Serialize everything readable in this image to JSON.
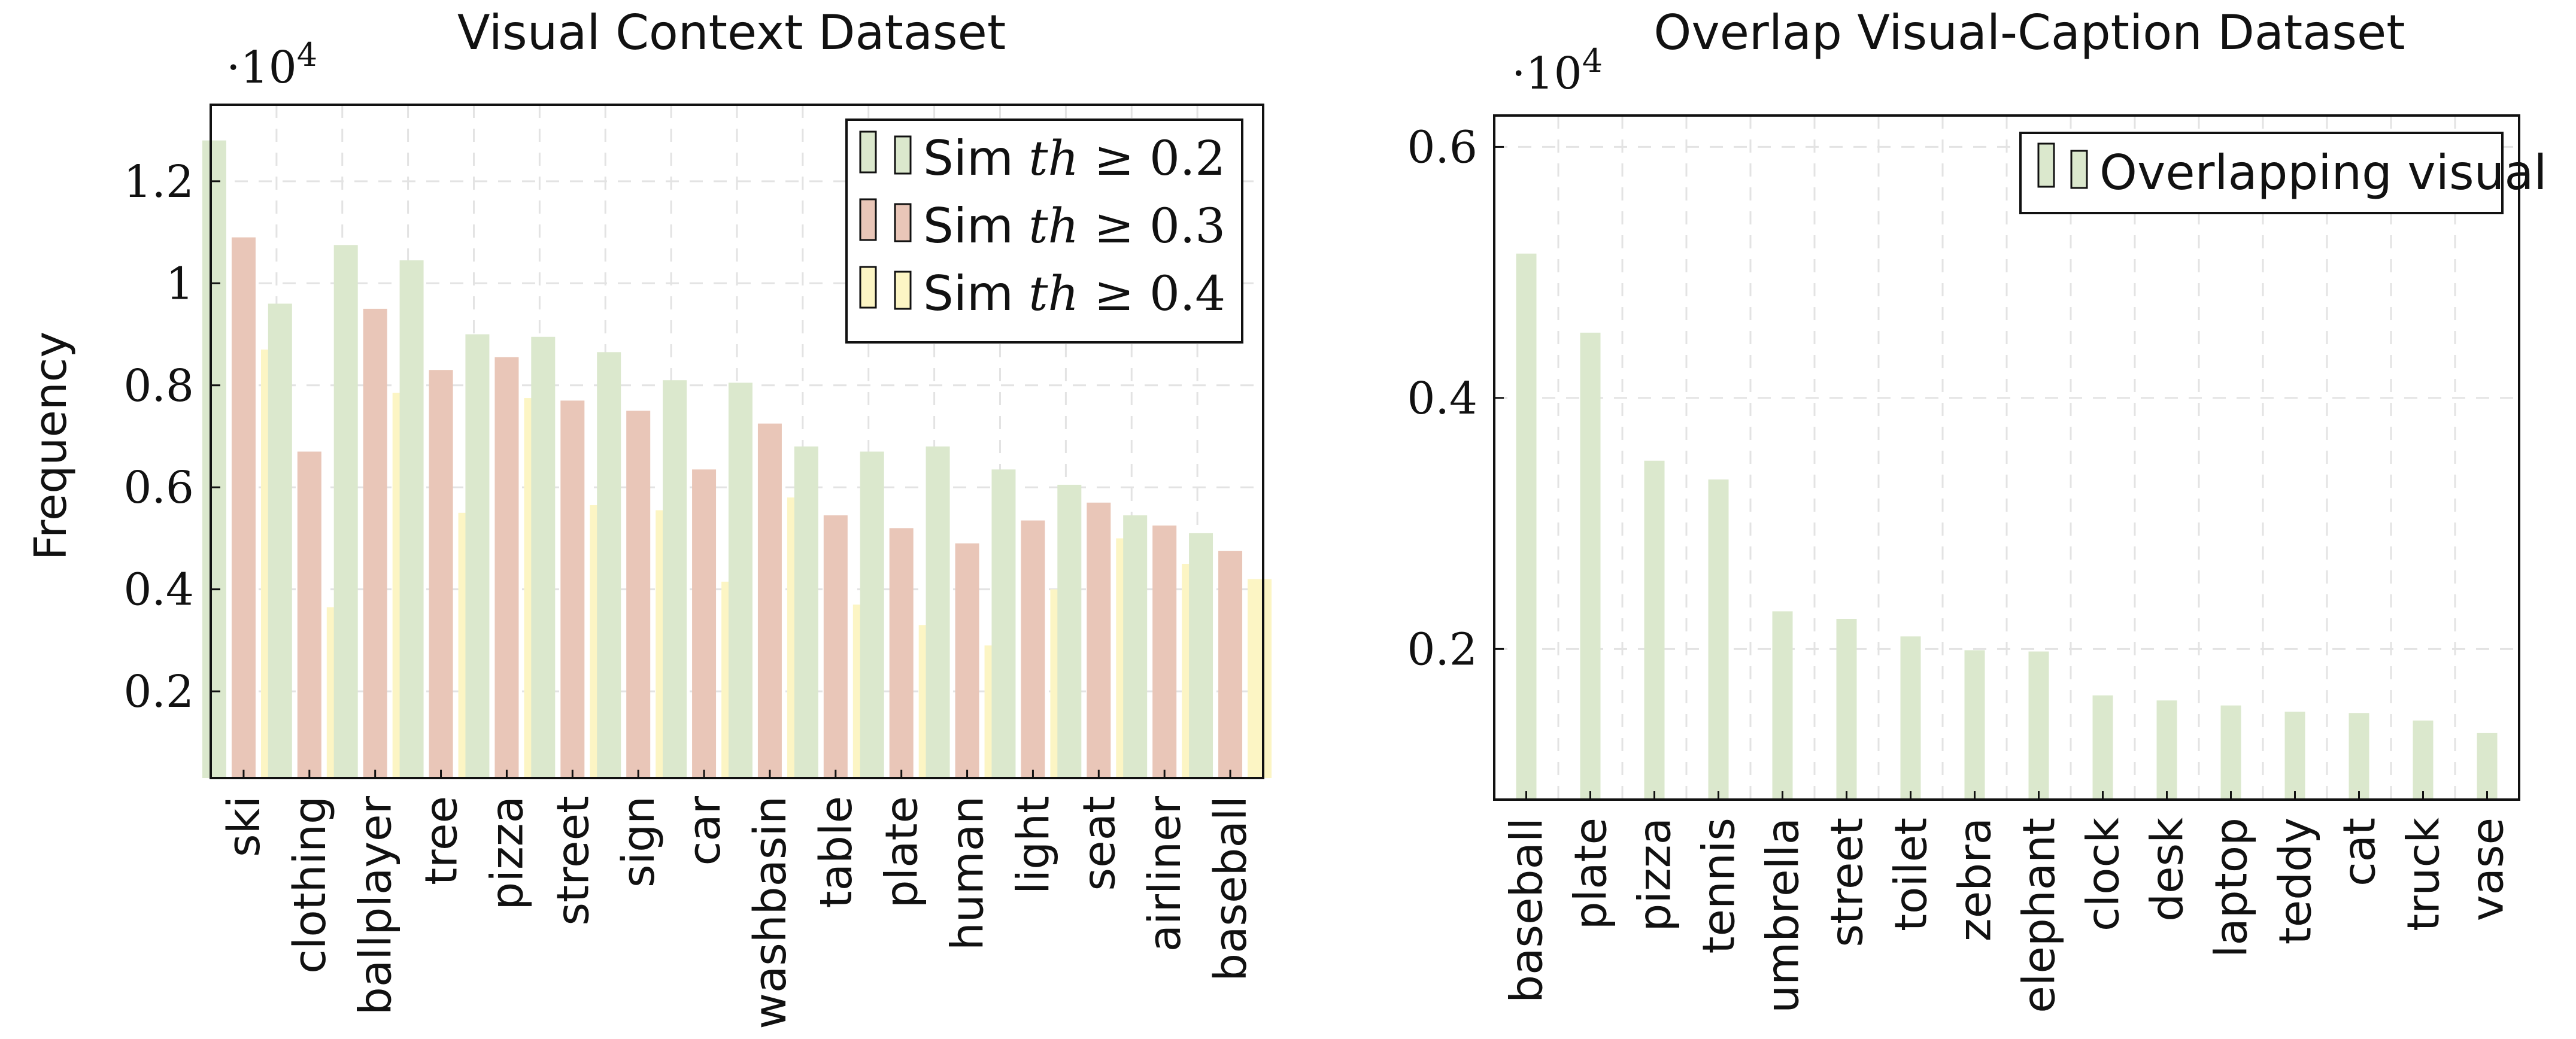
{
  "charts": [
    {
      "title": "Visual Context Dataset",
      "ylabel": "Frequency",
      "multiplier": "·10",
      "multiplier_exp": "4",
      "y_ticks": [
        "0.2",
        "0.4",
        "0.6",
        "0.8",
        "1",
        "1.2"
      ],
      "legend": [
        {
          "label": "Sim th ≥ 0.2",
          "prefix": "Sim ",
          "var": "th",
          "rest": " ≥ 0.2"
        },
        {
          "label": "Sim th ≥ 0.3",
          "prefix": "Sim ",
          "var": "th",
          "rest": " ≥ 0.3"
        },
        {
          "label": "Sim th ≥ 0.4",
          "prefix": "Sim ",
          "var": "th",
          "rest": " ≥ 0.4"
        }
      ]
    },
    {
      "title": "Overlap Visual-Caption Dataset",
      "multiplier": "·10",
      "multiplier_exp": "4",
      "y_ticks": [
        "0.2",
        "0.4",
        "0.6"
      ],
      "legend": [
        {
          "label": "Overlapping visual"
        }
      ]
    }
  ],
  "chart_data": [
    {
      "type": "bar",
      "title": "Visual Context Dataset",
      "ylabel": "Frequency",
      "y_multiplier": 10000,
      "ylim": [
        0.03,
        1.35
      ],
      "grid": true,
      "legend_position": "top-right",
      "colors": {
        "th02": "#dbe8cd",
        "th03": "#e9c6b8",
        "th04": "#fcf5c4"
      },
      "categories": [
        "ski",
        "clothing",
        "ballplayer",
        "tree",
        "pizza",
        "street",
        "sign",
        "car",
        "washbasin",
        "table",
        "plate",
        "human",
        "light",
        "seat",
        "airliner",
        "baseball"
      ],
      "bars": [
        {
          "series": "th02",
          "values": [
            1.28,
            0.96,
            1.075,
            1.045,
            0.9,
            0.895,
            0.865,
            0.81,
            0.805,
            0.68,
            0.67,
            0.68,
            0.635,
            0.605,
            0.545,
            0.51
          ]
        },
        {
          "series": "th03",
          "values": [
            1.09,
            0.67,
            0.95,
            0.83,
            0.855,
            0.77,
            0.75,
            0.635,
            0.725,
            0.545,
            0.52,
            0.49,
            0.535,
            0.57,
            0.525,
            0.475
          ]
        },
        {
          "series": "th04",
          "values": [
            0.87,
            0.365,
            0.785,
            0.55,
            0.775,
            0.565,
            0.555,
            0.415,
            0.58,
            0.37,
            0.33,
            0.29,
            0.4,
            0.5,
            0.45,
            0.42
          ]
        }
      ]
    },
    {
      "type": "bar",
      "title": "Overlap Visual-Caption Dataset",
      "y_multiplier": 10000,
      "ylim": [
        0.08,
        0.625
      ],
      "grid": true,
      "legend_position": "top-right",
      "colors": {
        "overlap": "#dbe8cd"
      },
      "categories": [
        "baseball",
        "plate",
        "pizza",
        "tennis",
        "umbrella",
        "street",
        "toilet",
        "zebra",
        "elephant",
        "clock",
        "desk",
        "laptop",
        "teddy",
        "cat",
        "truck",
        "vase"
      ],
      "series": [
        {
          "name": "Overlapping visual",
          "values": [
            0.515,
            0.452,
            0.35,
            0.335,
            0.23,
            0.224,
            0.21,
            0.199,
            0.198,
            0.163,
            0.159,
            0.155,
            0.15,
            0.149,
            0.143,
            0.133
          ]
        }
      ]
    }
  ]
}
